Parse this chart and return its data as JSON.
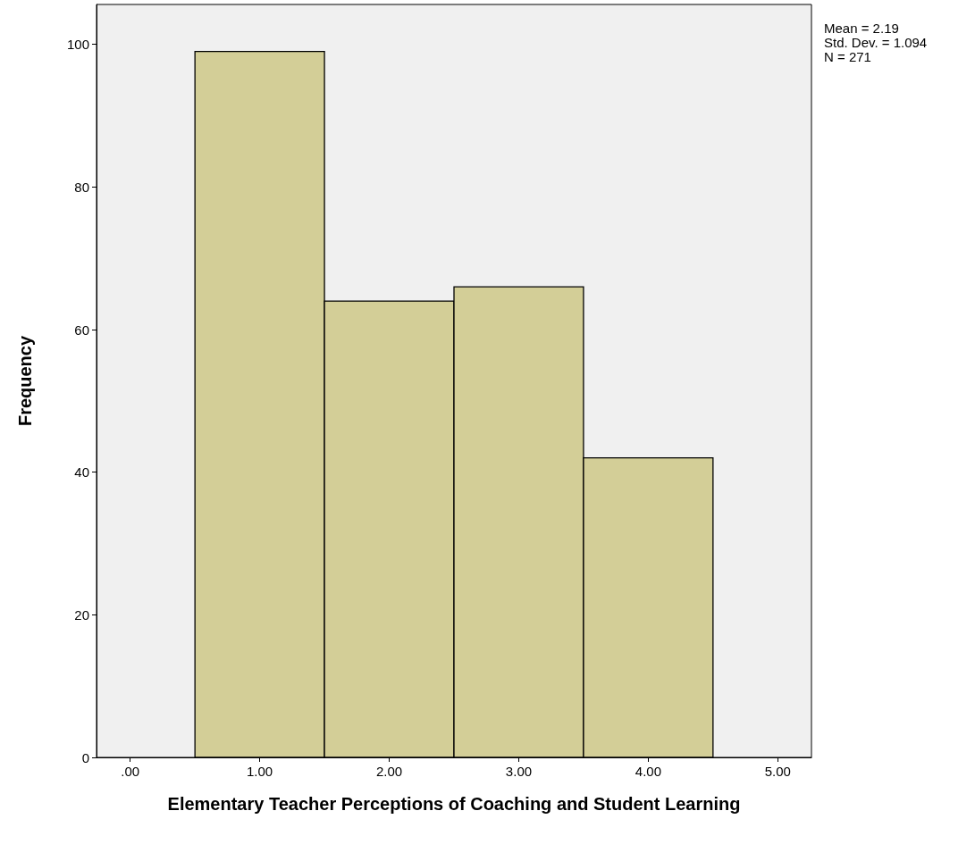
{
  "chart_data": {
    "type": "histogram",
    "xlabel": "Elementary Teacher Perceptions of Coaching and Student Learning",
    "ylabel": "Frequency",
    "annotations": [
      "Mean = 2.19",
      "Std. Dev. = 1.094",
      "N = 271"
    ],
    "bins": [
      0.5,
      1.5,
      2.5,
      3.5,
      4.5
    ],
    "values": [
      99,
      64,
      66,
      42
    ],
    "color": "#d3ce97",
    "xlim": [
      -0.26,
      5.26
    ],
    "xticks": [
      {
        "value": 0,
        "label": ".00"
      },
      {
        "value": 1,
        "label": "1.00"
      },
      {
        "value": 2,
        "label": "2.00"
      },
      {
        "value": 3,
        "label": "3.00"
      },
      {
        "value": 4,
        "label": "4.00"
      },
      {
        "value": 5,
        "label": "5.00"
      }
    ],
    "ylim": [
      0,
      105.6
    ],
    "yticks": [
      0,
      20,
      40,
      60,
      80,
      100
    ],
    "grid": false
  }
}
